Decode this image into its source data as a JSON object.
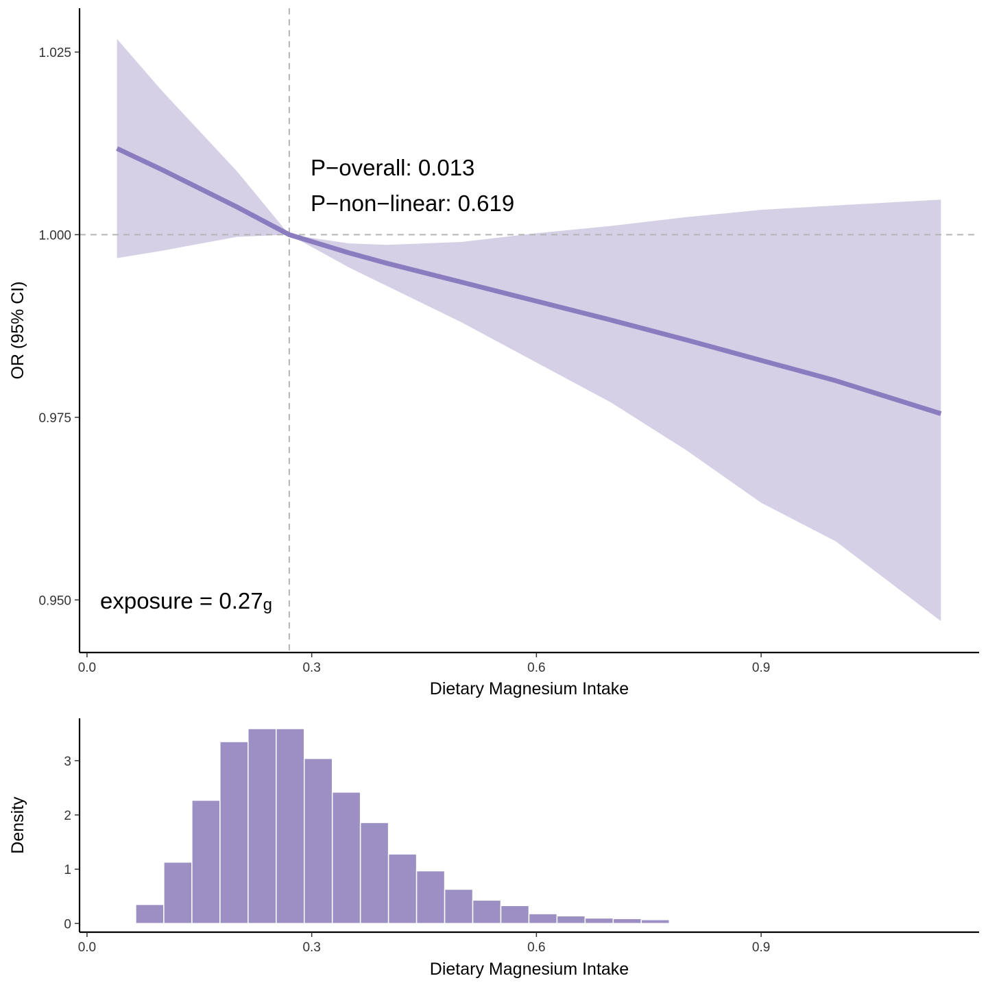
{
  "chart_data": [
    {
      "type": "line",
      "title": "",
      "xlabel": "Dietary Magnesium Intake",
      "ylabel": "OR (95% CI)",
      "xlim": [
        -0.01,
        1.191
      ],
      "ylim": [
        0.9428,
        1.031
      ],
      "xticks": [
        0.0,
        0.3,
        0.6,
        0.9
      ],
      "xtick_labels": [
        "0.0",
        "0.3",
        "0.6",
        "0.9"
      ],
      "yticks": [
        0.95,
        0.975,
        1.0,
        1.025
      ],
      "ytick_labels": [
        "0.950",
        "0.975",
        "1.000",
        "1.025"
      ],
      "grid": false,
      "reference_lines": {
        "x": 0.27,
        "y": 1.0
      },
      "x": [
        0.04,
        0.1,
        0.2,
        0.27,
        0.35,
        0.4,
        0.5,
        0.6,
        0.7,
        0.8,
        0.9,
        1.0,
        1.14
      ],
      "series": [
        {
          "name": "OR",
          "values": [
            1.0118,
            1.0089,
            1.0038,
            1.0,
            0.9975,
            0.9961,
            0.9935,
            0.9909,
            0.9883,
            0.9856,
            0.9828,
            0.98,
            0.9755
          ]
        },
        {
          "name": "upper 95% CI",
          "values": [
            1.0268,
            1.0197,
            1.0087,
            1.0,
            0.9988,
            0.9986,
            0.999,
            1.0002,
            1.0012,
            1.0024,
            1.0034,
            1.004,
            1.0048
          ]
        },
        {
          "name": "lower 95% CI",
          "values": [
            0.9968,
            0.9978,
            0.9997,
            1.0,
            0.9955,
            0.993,
            0.988,
            0.9825,
            0.977,
            0.9705,
            0.9633,
            0.958,
            0.9471
          ]
        }
      ],
      "annotations": {
        "p_overall": "P−overall: 0.013",
        "p_nonlinear": "P−non−linear: 0.619",
        "exposure": "exposure = 0.27",
        "exposure_unit": "g"
      },
      "colors": {
        "line": "#8b7cbf",
        "band": "#d5d0e6",
        "ref": "#b5b5b5"
      }
    },
    {
      "type": "bar",
      "title": "",
      "xlabel": "Dietary Magnesium Intake",
      "ylabel": "Density",
      "xlim": [
        -0.01,
        1.191
      ],
      "ylim": [
        -0.16,
        3.78
      ],
      "xticks": [
        0.0,
        0.3,
        0.6,
        0.9
      ],
      "xtick_labels": [
        "0.0",
        "0.3",
        "0.6",
        "0.9"
      ],
      "yticks": [
        0,
        1,
        2,
        3
      ],
      "ytick_labels": [
        "0",
        "1",
        "2",
        "3"
      ],
      "grid": false,
      "bin_start": 0.065,
      "bin_width": 0.0375,
      "values": [
        0.35,
        1.13,
        2.27,
        3.35,
        3.59,
        3.59,
        3.04,
        2.42,
        1.86,
        1.28,
        0.97,
        0.63,
        0.43,
        0.33,
        0.18,
        0.14,
        0.1,
        0.09,
        0.07,
        0.01
      ],
      "colors": {
        "bar": "#9b8fc4"
      }
    }
  ]
}
